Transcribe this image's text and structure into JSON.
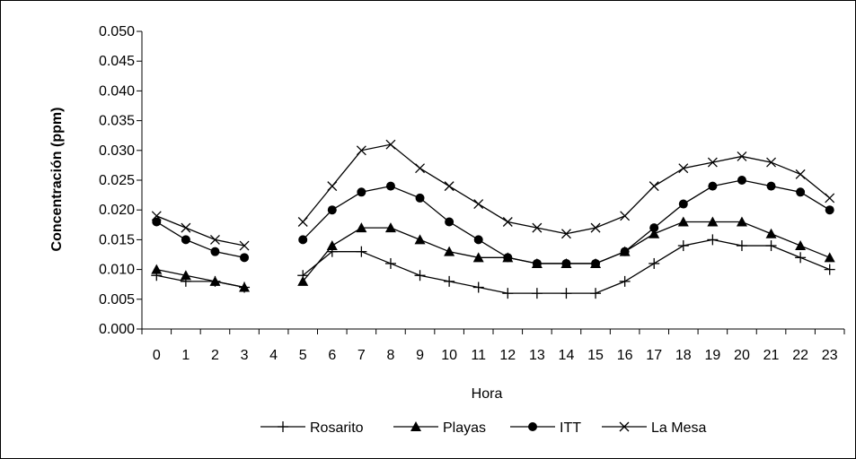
{
  "chart_data": {
    "type": "line",
    "xlabel": "Hora",
    "ylabel": "Concentración (ppm)",
    "categories": [
      "0",
      "1",
      "2",
      "3",
      "4",
      "5",
      "6",
      "7",
      "8",
      "9",
      "10",
      "11",
      "12",
      "13",
      "14",
      "15",
      "16",
      "17",
      "18",
      "19",
      "20",
      "21",
      "22",
      "23"
    ],
    "yticks": [
      "0.000",
      "0.005",
      "0.010",
      "0.015",
      "0.020",
      "0.025",
      "0.030",
      "0.035",
      "0.040",
      "0.045",
      "0.050"
    ],
    "ylim": [
      0,
      0.05
    ],
    "grid": false,
    "legend_position": "bottom",
    "series": [
      {
        "name": "Rosarito",
        "marker": "plus",
        "color": "#000000",
        "values": [
          0.009,
          0.008,
          0.008,
          0.007,
          null,
          0.009,
          0.013,
          0.013,
          0.011,
          0.009,
          0.008,
          0.007,
          0.006,
          0.006,
          0.006,
          0.006,
          0.008,
          0.011,
          0.014,
          0.015,
          0.014,
          0.014,
          0.012,
          0.01
        ]
      },
      {
        "name": "Playas",
        "marker": "triangle",
        "color": "#000000",
        "values": [
          0.01,
          0.009,
          0.008,
          0.007,
          null,
          0.008,
          0.014,
          0.017,
          0.017,
          0.015,
          0.013,
          0.012,
          0.012,
          0.011,
          0.011,
          0.011,
          0.013,
          0.016,
          0.018,
          0.018,
          0.018,
          0.016,
          0.014,
          0.012
        ]
      },
      {
        "name": "ITT",
        "marker": "circle",
        "color": "#000000",
        "values": [
          0.018,
          0.015,
          0.013,
          0.012,
          null,
          0.015,
          0.02,
          0.023,
          0.024,
          0.022,
          0.018,
          0.015,
          0.012,
          0.011,
          0.011,
          0.011,
          0.013,
          0.017,
          0.021,
          0.024,
          0.025,
          0.024,
          0.023,
          0.02
        ]
      },
      {
        "name": "La Mesa",
        "marker": "x",
        "color": "#000000",
        "values": [
          0.019,
          0.017,
          0.015,
          0.014,
          null,
          0.018,
          0.024,
          0.03,
          0.031,
          0.027,
          0.024,
          0.021,
          0.018,
          0.017,
          0.016,
          0.017,
          0.019,
          0.024,
          0.027,
          0.028,
          0.029,
          0.028,
          0.026,
          0.022
        ]
      }
    ]
  }
}
